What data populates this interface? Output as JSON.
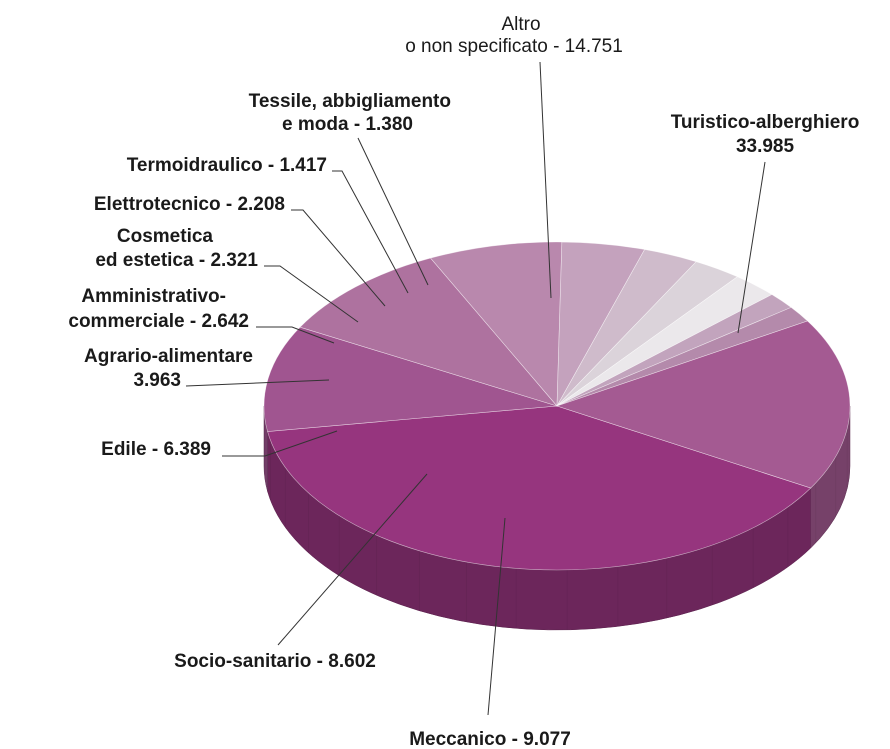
{
  "chart_data": {
    "type": "pie",
    "style": "3d",
    "title": "",
    "legend": "none",
    "slices": [
      {
        "label_lines": [
          "Turistico-alberghiero",
          "33.985"
        ],
        "value": 33985,
        "color": "#96357e",
        "bold": true
      },
      {
        "label_lines": [
          "Meccanico - 9.077"
        ],
        "value": 9077,
        "color": "#a05590",
        "bold": true
      },
      {
        "label_lines": [
          "Socio-sanitario - 8.602"
        ],
        "value": 8602,
        "color": "#ae729f",
        "bold": true
      },
      {
        "label_lines": [
          "Edile - 6.389"
        ],
        "value": 6389,
        "color": "#b988ad",
        "bold": true
      },
      {
        "label_lines": [
          "Agrario-alimentare",
          "3.963"
        ],
        "value": 3963,
        "color": "#c4a2bd",
        "bold": true
      },
      {
        "label_lines": [
          "Amministrativo-",
          "commerciale - 2.642"
        ],
        "value": 2642,
        "color": "#cfbbcb",
        "bold": true
      },
      {
        "label_lines": [
          "Cosmetica",
          "ed estetica - 2.321"
        ],
        "value": 2321,
        "color": "#dbd3da",
        "bold": true
      },
      {
        "label_lines": [
          "Elettrotecnico - 2.208"
        ],
        "value": 2208,
        "color": "#ebe8eb",
        "bold": true
      },
      {
        "label_lines": [
          "Termoidraulico - 1.417"
        ],
        "value": 1417,
        "color": "#c2a4bd",
        "bold": true
      },
      {
        "label_lines": [
          "Tessile, abbigliamento",
          "e moda - 1.380"
        ],
        "value": 1380,
        "color": "#b48aab",
        "bold": true
      },
      {
        "label_lines": [
          "Altro",
          "o non specificato - 14.751"
        ],
        "value": 14751,
        "color": "#a45a92",
        "bold": false
      }
    ]
  }
}
